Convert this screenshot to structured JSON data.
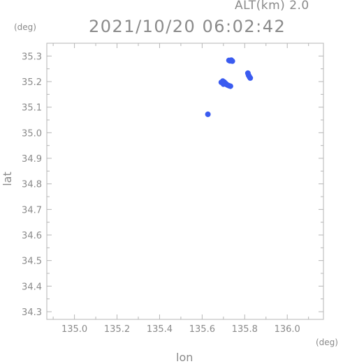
{
  "header": {
    "alt_label": "ALT(km) 2.0",
    "timestamp": "2021/10/20 06:02:42",
    "y_unit": "(deg)",
    "x_unit": "(deg)"
  },
  "chart_data": {
    "type": "scatter",
    "title": "2021/10/20 06:02:42",
    "xlabel": "lon",
    "ylabel": "lat",
    "xlim": [
      134.87,
      136.17
    ],
    "ylim": [
      34.27,
      35.35
    ],
    "xticks": [
      135.0,
      135.2,
      135.4,
      135.6,
      135.8,
      136.0
    ],
    "xtick_labels": [
      "135.0",
      "135.2",
      "135.4",
      "135.6",
      "135.8",
      "136.0"
    ],
    "yticks": [
      34.3,
      34.4,
      34.5,
      34.6,
      34.7,
      34.8,
      34.9,
      35.0,
      35.1,
      35.2,
      35.3
    ],
    "ytick_labels": [
      "34.3",
      "34.4",
      "34.5",
      "34.6",
      "34.7",
      "34.8",
      "34.9",
      "35.0",
      "35.1",
      "35.2",
      "35.3"
    ],
    "grid": false,
    "marker_color": "#3a5bf0",
    "points": [
      {
        "lon": 135.726,
        "lat": 35.283
      },
      {
        "lon": 135.731,
        "lat": 35.281
      },
      {
        "lon": 135.737,
        "lat": 35.284
      },
      {
        "lon": 135.742,
        "lat": 35.28
      },
      {
        "lon": 135.815,
        "lat": 35.233
      },
      {
        "lon": 135.818,
        "lat": 35.225
      },
      {
        "lon": 135.822,
        "lat": 35.219
      },
      {
        "lon": 135.826,
        "lat": 35.214
      },
      {
        "lon": 135.69,
        "lat": 35.197
      },
      {
        "lon": 135.697,
        "lat": 35.202
      },
      {
        "lon": 135.704,
        "lat": 35.198
      },
      {
        "lon": 135.711,
        "lat": 35.192
      },
      {
        "lon": 135.7,
        "lat": 35.19
      },
      {
        "lon": 135.718,
        "lat": 35.187
      },
      {
        "lon": 135.726,
        "lat": 35.184
      },
      {
        "lon": 135.733,
        "lat": 35.182
      },
      {
        "lon": 135.627,
        "lat": 35.072
      }
    ]
  }
}
